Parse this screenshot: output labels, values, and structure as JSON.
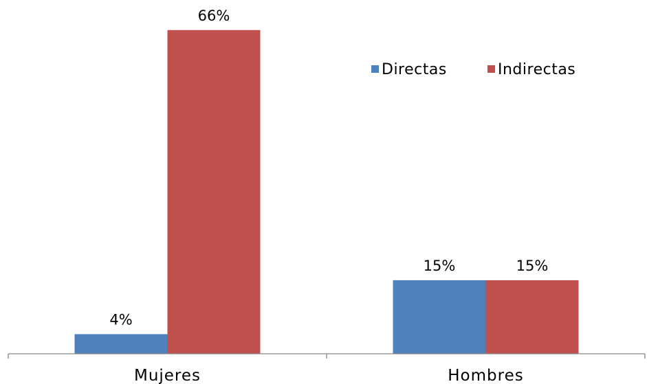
{
  "chart_data": {
    "type": "bar",
    "categories": [
      "Mujeres",
      "Hombres"
    ],
    "series": [
      {
        "name": "Directas",
        "values": [
          4,
          15
        ],
        "color": "#4F81BD"
      },
      {
        "name": "Indirectas",
        "values": [
          66,
          15
        ],
        "color": "#C0504D"
      }
    ],
    "data_labels": [
      [
        "4%",
        "15%"
      ],
      [
        "66%",
        "15%"
      ]
    ],
    "value_format": "percent",
    "ylim": [
      0,
      70
    ],
    "grid": false,
    "y_axis_visible": false,
    "legend_position": "top-right",
    "title": "",
    "xlabel": "",
    "ylabel": ""
  }
}
